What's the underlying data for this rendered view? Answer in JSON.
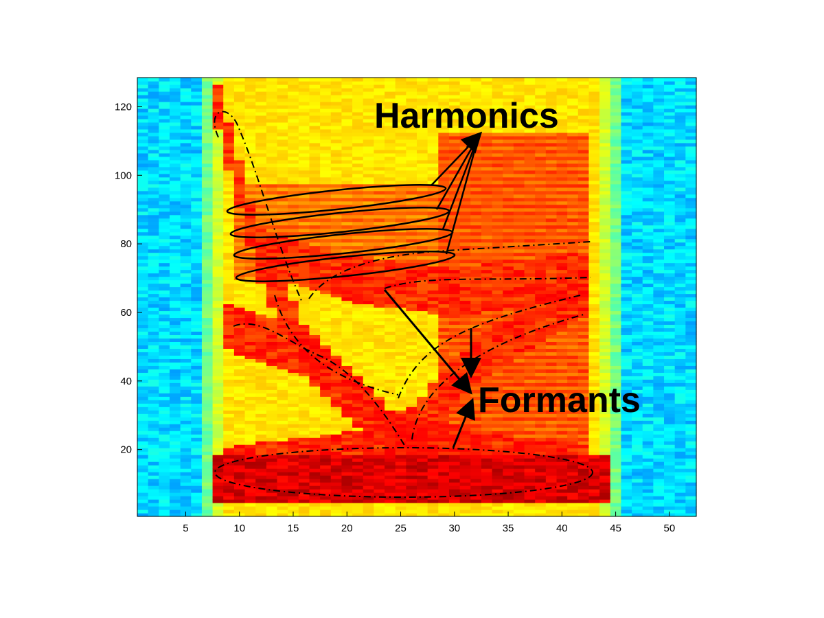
{
  "chart_data": {
    "type": "heatmap",
    "title": "",
    "xlabel": "",
    "ylabel": "",
    "x_range": [
      0.5,
      52.5
    ],
    "y_range": [
      0.5,
      128.5
    ],
    "x_ticks": [
      5,
      10,
      15,
      20,
      25,
      30,
      35,
      40,
      45,
      50
    ],
    "y_ticks": [
      20,
      40,
      60,
      80,
      100,
      120
    ],
    "x_tick_labels": [
      "5",
      "10",
      "15",
      "20",
      "25",
      "30",
      "35",
      "40",
      "45",
      "50"
    ],
    "y_tick_labels": [
      "20",
      "40",
      "60",
      "80",
      "100",
      "120"
    ],
    "colormap": "jet",
    "grid": false,
    "legend": "none",
    "signal_region": {
      "x_start": 8,
      "x_end": 44
    },
    "harmonic_bands": [
      {
        "x_start": 10,
        "x_end": 28,
        "y_start": 90,
        "y_end": 97
      },
      {
        "x_start": 10,
        "x_end": 28,
        "y_start": 83,
        "y_end": 90
      },
      {
        "x_start": 10,
        "x_end": 29,
        "y_start": 77,
        "y_end": 85
      },
      {
        "x_start": 10,
        "x_end": 29,
        "y_start": 70,
        "y_end": 77
      }
    ],
    "formant_tracks": [
      {
        "points": [
          [
            8,
            120
          ],
          [
            12,
            75
          ],
          [
            16,
            50
          ],
          [
            24,
            25
          ],
          [
            40,
            14
          ]
        ]
      },
      {
        "points": [
          [
            9,
            56
          ],
          [
            16,
            48
          ],
          [
            25,
            22
          ],
          [
            32,
            46
          ],
          [
            42,
            66
          ]
        ]
      },
      {
        "points": [
          [
            12,
            78
          ],
          [
            20,
            70
          ],
          [
            30,
            66
          ],
          [
            42,
            71
          ]
        ]
      },
      {
        "points": [
          [
            9,
            14
          ],
          [
            25,
            20
          ],
          [
            42,
            15
          ]
        ]
      }
    ],
    "annotations": {
      "harmonics_label": "Harmonics",
      "formants_label": "Formants"
    },
    "colors": {
      "background_low": "#1f6fff",
      "mid": "#ffe800",
      "high": "#d50000",
      "annotation": "#000000"
    }
  }
}
